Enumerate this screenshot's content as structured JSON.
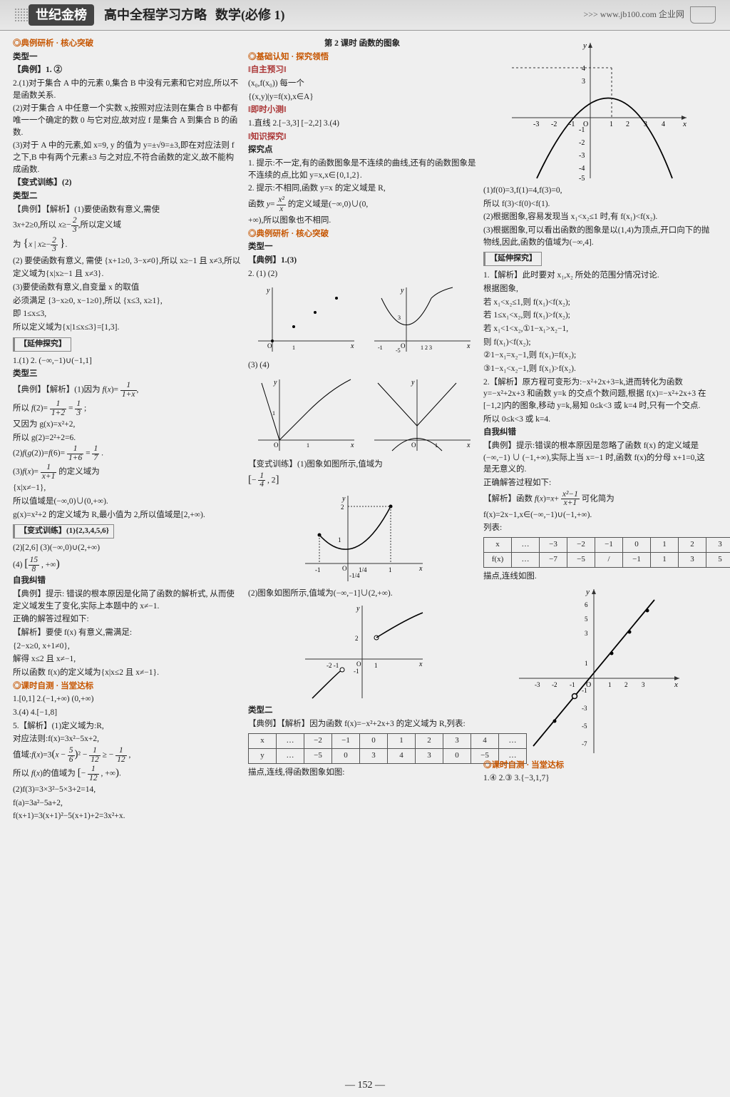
{
  "header": {
    "logo": "世纪金榜",
    "title": "高中全程学习方略",
    "subtitle": "数学(必修 1)",
    "url": ">>> www.jb100.com 企业网"
  },
  "pageNumber": "— 152 —",
  "col1": {
    "s1": "◎典例研析 · 核心突破",
    "t1": "类型一",
    "ex1": "【典例】1. ②",
    "p2a": "2.(1)对于集合 A 中的元素 0,集合 B 中没有元素和它对应,所以不是函数关系.",
    "p2b": "(2)对于集合 A 中任意一个实数 x,按照对应法则在集合 B 中都有唯一一个确定的数 0 与它对应,故对应 f 是集合 A 到集合 B 的函数.",
    "p2c": "(3)对于 A 中的元素,如 x=9, y 的值为 y=±√9=±3,即在对应法则 f 之下,B 中有两个元素±3 与之对应,不符合函数的定义,故不能构成函数.",
    "vt1": "【变式训练】(2)",
    "t2": "类型二",
    "ex2a": "【典例】【解析】(1)要使函数有意义,需使",
    "ex2b": "3x+2≥0,所以 x≥−2/3,所以定义域",
    "ex2c": "为 {x | x≥−2/3}.",
    "ex2d": "(2) 要使函数有意义, 需使 {x+1≥0, 3−x≠0},所以 x≥−1 且 x≠3,所以",
    "ex2e": "定义域为{x|x≥−1 且 x≠3}.",
    "ex2f": "(3)要使函数有意义,自变量 x 的取值",
    "ex2g": "必须满足 {3−x≥0, x−1≥0},所以 {x≤3, x≥1},",
    "ex2h": "即 1≤x≤3,",
    "ex2i": "所以定义域为{x|1≤x≤3}=[1,3].",
    "ext1": "【延伸探究】",
    "ext1a": "1.(1)  2. (−∞,−1)∪(−1,1]",
    "t3": "类型三",
    "ex3a": "【典例】【解析】(1)因为 f(x)= 1/(1+x),",
    "ex3b": "所以 f(2)= 1/(1+2) = 1/3 ;",
    "ex3c": "又因为 g(x)=x²+2,",
    "ex3d": "所以 g(2)=2²+2=6.",
    "ex3e": "(2)f(g(2))=f(6)= 1/(1+6) = 1/7 .",
    "ex3f": "(3)f(x)= 1/(x+1) 的定义域为",
    "ex3g": "{x|x≠−1},",
    "ex3h": "所以值域是(−∞,0)∪(0,+∞).",
    "ex3i": "g(x)=x²+2 的定义域为 R,最小值为 2,所以值域是[2,+∞).",
    "vt2": "【变式训练】(1){2,3,4,5,6}",
    "vt2b": "(2)[2,6]  (3)(−∞,0)∪(2,+∞)",
    "vt2c": "(4) [15/8 , +∞)",
    "se": "自我纠错",
    "se1": "【典例】提示: 错误的根本原因是化简了函数的解析式, 从而使定义域发生了变化,实际上本题中的 x≠−1.",
    "se2": "正确的解答过程如下:",
    "se3": "【解析】要使 f(x) 有意义,需满足:",
    "se4": "{2−x≥0, x+1≠0},",
    "se5": "解得 x≤2 且 x≠−1,",
    "se6": "所以函数 f(x)的定义域为{x|x≤2 且 x≠−1}.",
    "s2": "◎课时自测 · 当堂达标",
    "a1": "1.[0,1]  2.(−1,+∞)  (0,+∞)",
    "a3": "3.(4)  4.[−1,8]",
    "a5a": "5.【解析】(1)定义域为:R,",
    "a5b": "对应法则:f(x)=3x²−5x+2,",
    "a5c": "值域:f(x)=3(x − 5/6)² − 1/12 ≥ − 1/12 ,",
    "a5d": "所以 f(x)的值域为 [− 1/12 , +∞).",
    "a5e": "(2)f(3)=3×3²−5×3+2=14,",
    "a5f": "f(a)=3a²−5a+2,",
    "a5g": "f(x+1)=3(x+1)²−5(x+1)+2=3x²+x."
  },
  "col2": {
    "title": "第 2 课时  函数的图象",
    "s1": "◎基础认知 · 探究领悟",
    "pre": "‖自主预习‖",
    "p1a": "(x₀,f(x₀))  每一个",
    "p1b": "{(x,y)|y=f(x),x∈A}",
    "timely": "‖即时小测‖",
    "t1": "1.直线  2.[−3,3]   [−2,2]  3.(4)",
    "know": "‖知识探究‖",
    "kp": "探究点",
    "k1": "1. 提示:不一定,有的函数图象是不连续的曲线,还有的函数图象是不连续的点,比如 y=x,x∈{0,1,2}.",
    "k2": "2. 提示:不相同,函数 y=x 的定义域是 R,",
    "k2b": "函数 y= x²/x 的定义域是(−∞,0)∪(0,",
    "k2c": "+∞),所以图象也不相同.",
    "s2": "◎典例研析 · 核心突破",
    "t2": "类型一",
    "ex1": "【典例】1.(3)",
    "ex1b": "2. (1)               (2)",
    "ex1c": "(3)                (4)",
    "vt": "【变式训练】(1)图象如图所示,值域为",
    "vtb": "[− 1/4 , 2]",
    "vt2a": "(2)图象如图所示,值域为(−∞,−1]∪(2,+∞).",
    "t3": "类型二",
    "ex2a": "【典例】【解析】因为函数 f(x)=−x²+2x+3 的定义域为 R,列表:",
    "ex2b": "描点,连线,得函数图象如图:",
    "table1": {
      "headers": [
        "x",
        "…",
        "−2",
        "−1",
        "0",
        "1",
        "2",
        "3",
        "4",
        "…"
      ],
      "row": [
        "y",
        "…",
        "−5",
        "0",
        "3",
        "4",
        "3",
        "0",
        "−5",
        "…"
      ]
    }
  },
  "col3": {
    "p1a": "(1)f(0)=3,f(1)=4,f(3)=0,",
    "p1b": "所以 f(3)<f(0)<f(1).",
    "p1c": "(2)根据图象,容易发现当 x₁<x₂≤1 时,有 f(x₁)<f(x₂).",
    "p1d": "(3)根据图象,可以看出函数的图象是以(1,4)为顶点,开口向下的抛物线,因此,函数的值域为(−∞,4].",
    "ext": "【延伸探究】",
    "e1": "1.【解析】此时要对 x₁,x₂ 所处的范围分情况讨论.",
    "e1a": "根据图象,",
    "e1b": "若 x₁<x₂≤1,则 f(x₁)<f(x₂);",
    "e1c": "若 1≤x₁<x₂,则 f(x₁)>f(x₂);",
    "e1d": "若 x₁<1<x₂,①1−x₁>x₂−1,",
    "e1e": "则 f(x₁)<f(x₂);",
    "e1f": "②1−x₁=x₂−1,则 f(x₁)=f(x₂);",
    "e1g": "③1−x₁<x₂−1,则 f(x₁)>f(x₂).",
    "e2": "2.【解析】原方程可变形为:−x²+2x+3=k,进而转化为函数 y=−x²+2x+3 和函数 y=k 的交点个数问题,根据 f(x)=−x²+2x+3 在[−1,2]内的图象,移动 y=k,易知 0≤k<3 或 k=4 时,只有一个交点.",
    "e2b": "所以 0≤k<3 或 k=4.",
    "se": "自我纠错",
    "sea": "【典例】提示:错误的根本原因是忽略了函数 f(x) 的定义域是 (−∞,−1) ∪ (−1,+∞),实际上当 x=−1 时,函数 f(x)的分母 x+1=0,这是无意义的.",
    "seb": "正确解答过程如下:",
    "sec": "【解析】函数 f(x)=x+ (x²−1)/(x+1) 可化简为",
    "sed": "f(x)=2x−1,x∈(−∞,−1)∪(−1,+∞).",
    "see": "列表:",
    "sef": "描点,连线如图.",
    "s2": "◎课时自测 · 当堂达标",
    "a1": "1.④  2.③  3.{−3,1,7}",
    "table2": {
      "headers": [
        "x",
        "…",
        "−3",
        "−2",
        "−1",
        "0",
        "1",
        "2",
        "3",
        "…"
      ],
      "row": [
        "f(x)",
        "…",
        "−7",
        "−5",
        "/",
        "−1",
        "1",
        "3",
        "5",
        "…"
      ]
    },
    "graph1": {
      "type": "parabola",
      "vertex": [
        1,
        4
      ],
      "xrange": [
        -3,
        4
      ],
      "yrange": [
        -5,
        4
      ],
      "axis_color": "#444",
      "curve_color": "#000"
    },
    "graph2": {
      "type": "line",
      "slope": 2,
      "intercept": -1,
      "hole": [
        -1,
        -3
      ],
      "xrange": [
        -3,
        3
      ],
      "yrange": [
        -7,
        6
      ]
    }
  }
}
